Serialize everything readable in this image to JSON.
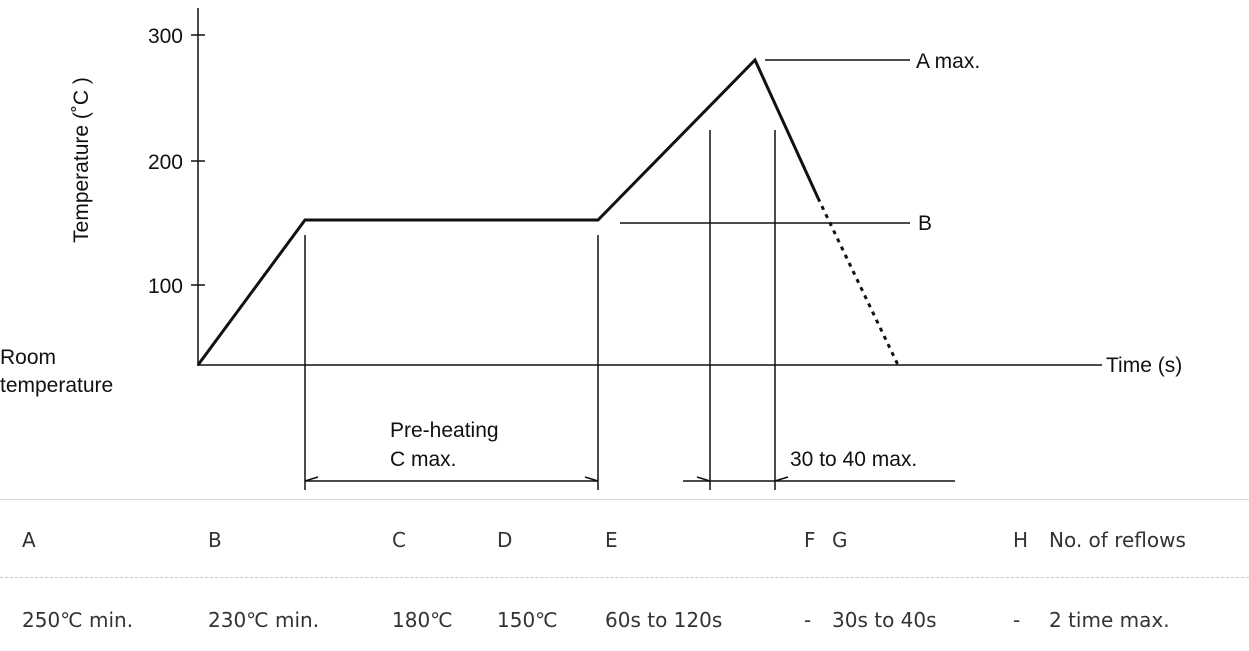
{
  "diagram": {
    "y_axis_label": "Temperature (˚C )",
    "x_axis_label": "Time (s)",
    "room_label_line1": "Room",
    "room_label_line2": "temperature",
    "y_ticks": [
      "300",
      "200",
      "100"
    ],
    "peak_label": "A max.",
    "b_label": "B",
    "preheat_line1": "Pre-heating",
    "preheat_line2": "C max.",
    "duration_label": "30 to 40 max."
  },
  "table": {
    "headers": [
      "A",
      "B",
      "C",
      "D",
      "E",
      "F",
      "G",
      "H",
      "No. of reflows"
    ],
    "values": [
      "250℃ min.",
      "230℃ min.",
      "180℃",
      "150℃",
      "60s to 120s",
      "-",
      "30s to 40s",
      "-",
      "2 time max."
    ]
  }
}
